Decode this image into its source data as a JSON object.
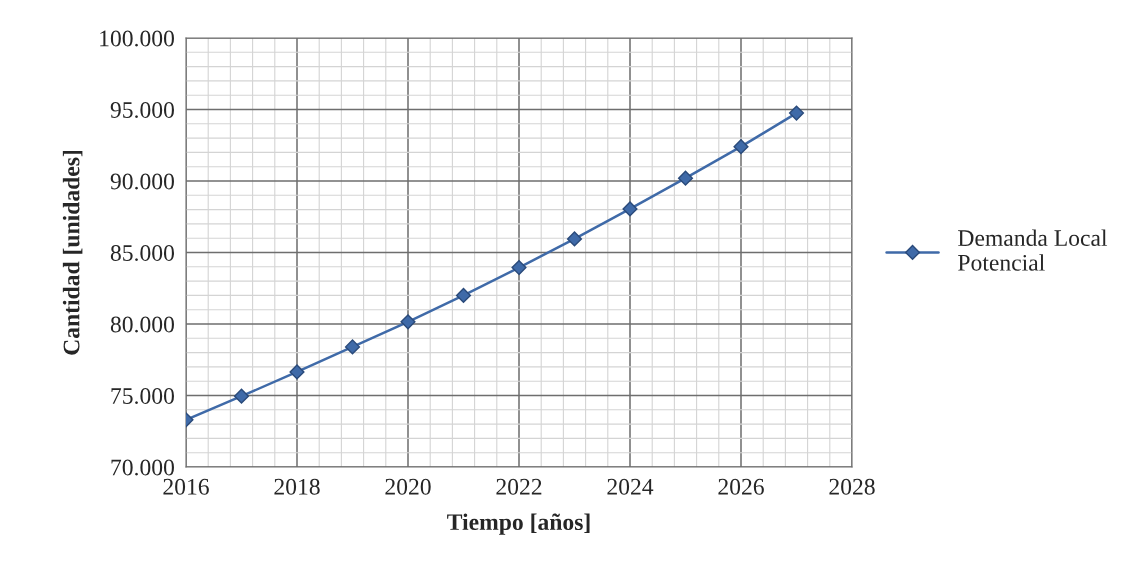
{
  "chart_data": {
    "type": "line",
    "xlabel": "Tiempo [años]",
    "ylabel": "Cantidad [unidades]",
    "x": [
      2016,
      2017,
      2018,
      2019,
      2020,
      2021,
      2022,
      2023,
      2024,
      2025,
      2026,
      2027
    ],
    "series": [
      {
        "name": "Demanda Local Potencial",
        "color": "#3f6aa8",
        "values": [
          73300,
          74950,
          76650,
          78400,
          80150,
          82000,
          83950,
          85950,
          88050,
          90200,
          92400,
          94750
        ]
      }
    ],
    "xlim": [
      2016,
      2028
    ],
    "xticks": [
      2016,
      2018,
      2020,
      2022,
      2024,
      2026,
      2028
    ],
    "ylim": [
      70000,
      100000
    ],
    "yticks": [
      {
        "value": 70000,
        "label": "70.000"
      },
      {
        "value": 75000,
        "label": "75.000"
      },
      {
        "value": 80000,
        "label": "80.000"
      },
      {
        "value": 85000,
        "label": "85.000"
      },
      {
        "value": 90000,
        "label": "90.000"
      },
      {
        "value": 95000,
        "label": "95.000"
      },
      {
        "value": 100000,
        "label": "100.000"
      }
    ],
    "grid": true,
    "legend": "right",
    "marker": "diamond",
    "line_style": "solid"
  }
}
